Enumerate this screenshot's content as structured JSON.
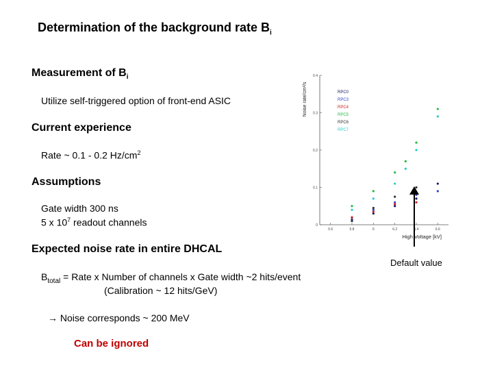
{
  "title": {
    "text": "Determination of the background rate B",
    "sub": "i"
  },
  "sections": {
    "measurement": {
      "heading": "Measurement of B",
      "heading_sub": "i",
      "line": "Utilize self-triggered option of front-end ASIC"
    },
    "experience": {
      "heading": "Current experience",
      "line_pre": "Rate ~ 0.1 - 0.2 Hz/cm",
      "line_sup": "2"
    },
    "assumptions": {
      "heading": "Assumptions",
      "line1": "Gate width 300 ns",
      "line2_pre": "5 x 10",
      "line2_sup": "7",
      "line2_post": " readout channels"
    },
    "noise": {
      "heading": "Expected noise rate in entire DHCAL",
      "btotal_B": "B",
      "btotal_sub": "total",
      "btotal_rest": " = Rate x Number of channels x Gate width ~2 hits/event",
      "calib": "(Calibration ~ 12 hits/GeV)",
      "arrow": "→",
      "result": "Noise corresponds ~ 200 MeV",
      "conclusion": "Can be ignored"
    }
  },
  "annotation": {
    "default_value": "Default value"
  },
  "colors": {
    "conclusion": "#c00000"
  },
  "chart_data": {
    "type": "scatter",
    "xlabel": "High Voltage [kV]",
    "ylabel": "Noise rate/cm²/s",
    "x_ticks": [
      "5.6",
      "5.8",
      "6",
      "6.2",
      "6.4",
      "6.6"
    ],
    "y_ticks": [
      "0",
      "0.1",
      "0.2",
      "0.3",
      "0.4"
    ],
    "xlim": [
      5.5,
      6.7
    ],
    "ylim": [
      0,
      0.4
    ],
    "grid": false,
    "legend_position": "top-left",
    "series": [
      {
        "name": "RPC0",
        "color": "#1a1a5e",
        "x": [
          5.8,
          6.0,
          6.2,
          6.4,
          6.6
        ],
        "y": [
          0.01,
          0.03,
          0.05,
          0.07,
          0.11
        ]
      },
      {
        "name": "RPC3",
        "color": "#3344cc",
        "x": [
          5.8,
          6.0,
          6.2,
          6.4,
          6.6
        ],
        "y": [
          0.015,
          0.04,
          0.06,
          0.08,
          0.09
        ]
      },
      {
        "name": "RPC4",
        "color": "#cc2222",
        "x": [
          5.8,
          6.0,
          6.2,
          6.4
        ],
        "y": [
          0.02,
          0.035,
          0.055,
          0.06
        ]
      },
      {
        "name": "RPC5",
        "color": "#22bb44",
        "x": [
          5.8,
          6.0,
          6.2,
          6.3,
          6.4,
          6.6
        ],
        "y": [
          0.05,
          0.09,
          0.14,
          0.17,
          0.22,
          0.31
        ]
      },
      {
        "name": "RPC6",
        "color": "#333333",
        "x": [
          5.8,
          6.0,
          6.2,
          6.4
        ],
        "y": [
          0.012,
          0.045,
          0.075,
          0.1
        ]
      },
      {
        "name": "RPC7",
        "color": "#22cccc",
        "x": [
          5.8,
          6.0,
          6.2,
          6.3,
          6.4,
          6.6
        ],
        "y": [
          0.04,
          0.07,
          0.11,
          0.15,
          0.2,
          0.29
        ]
      }
    ]
  }
}
